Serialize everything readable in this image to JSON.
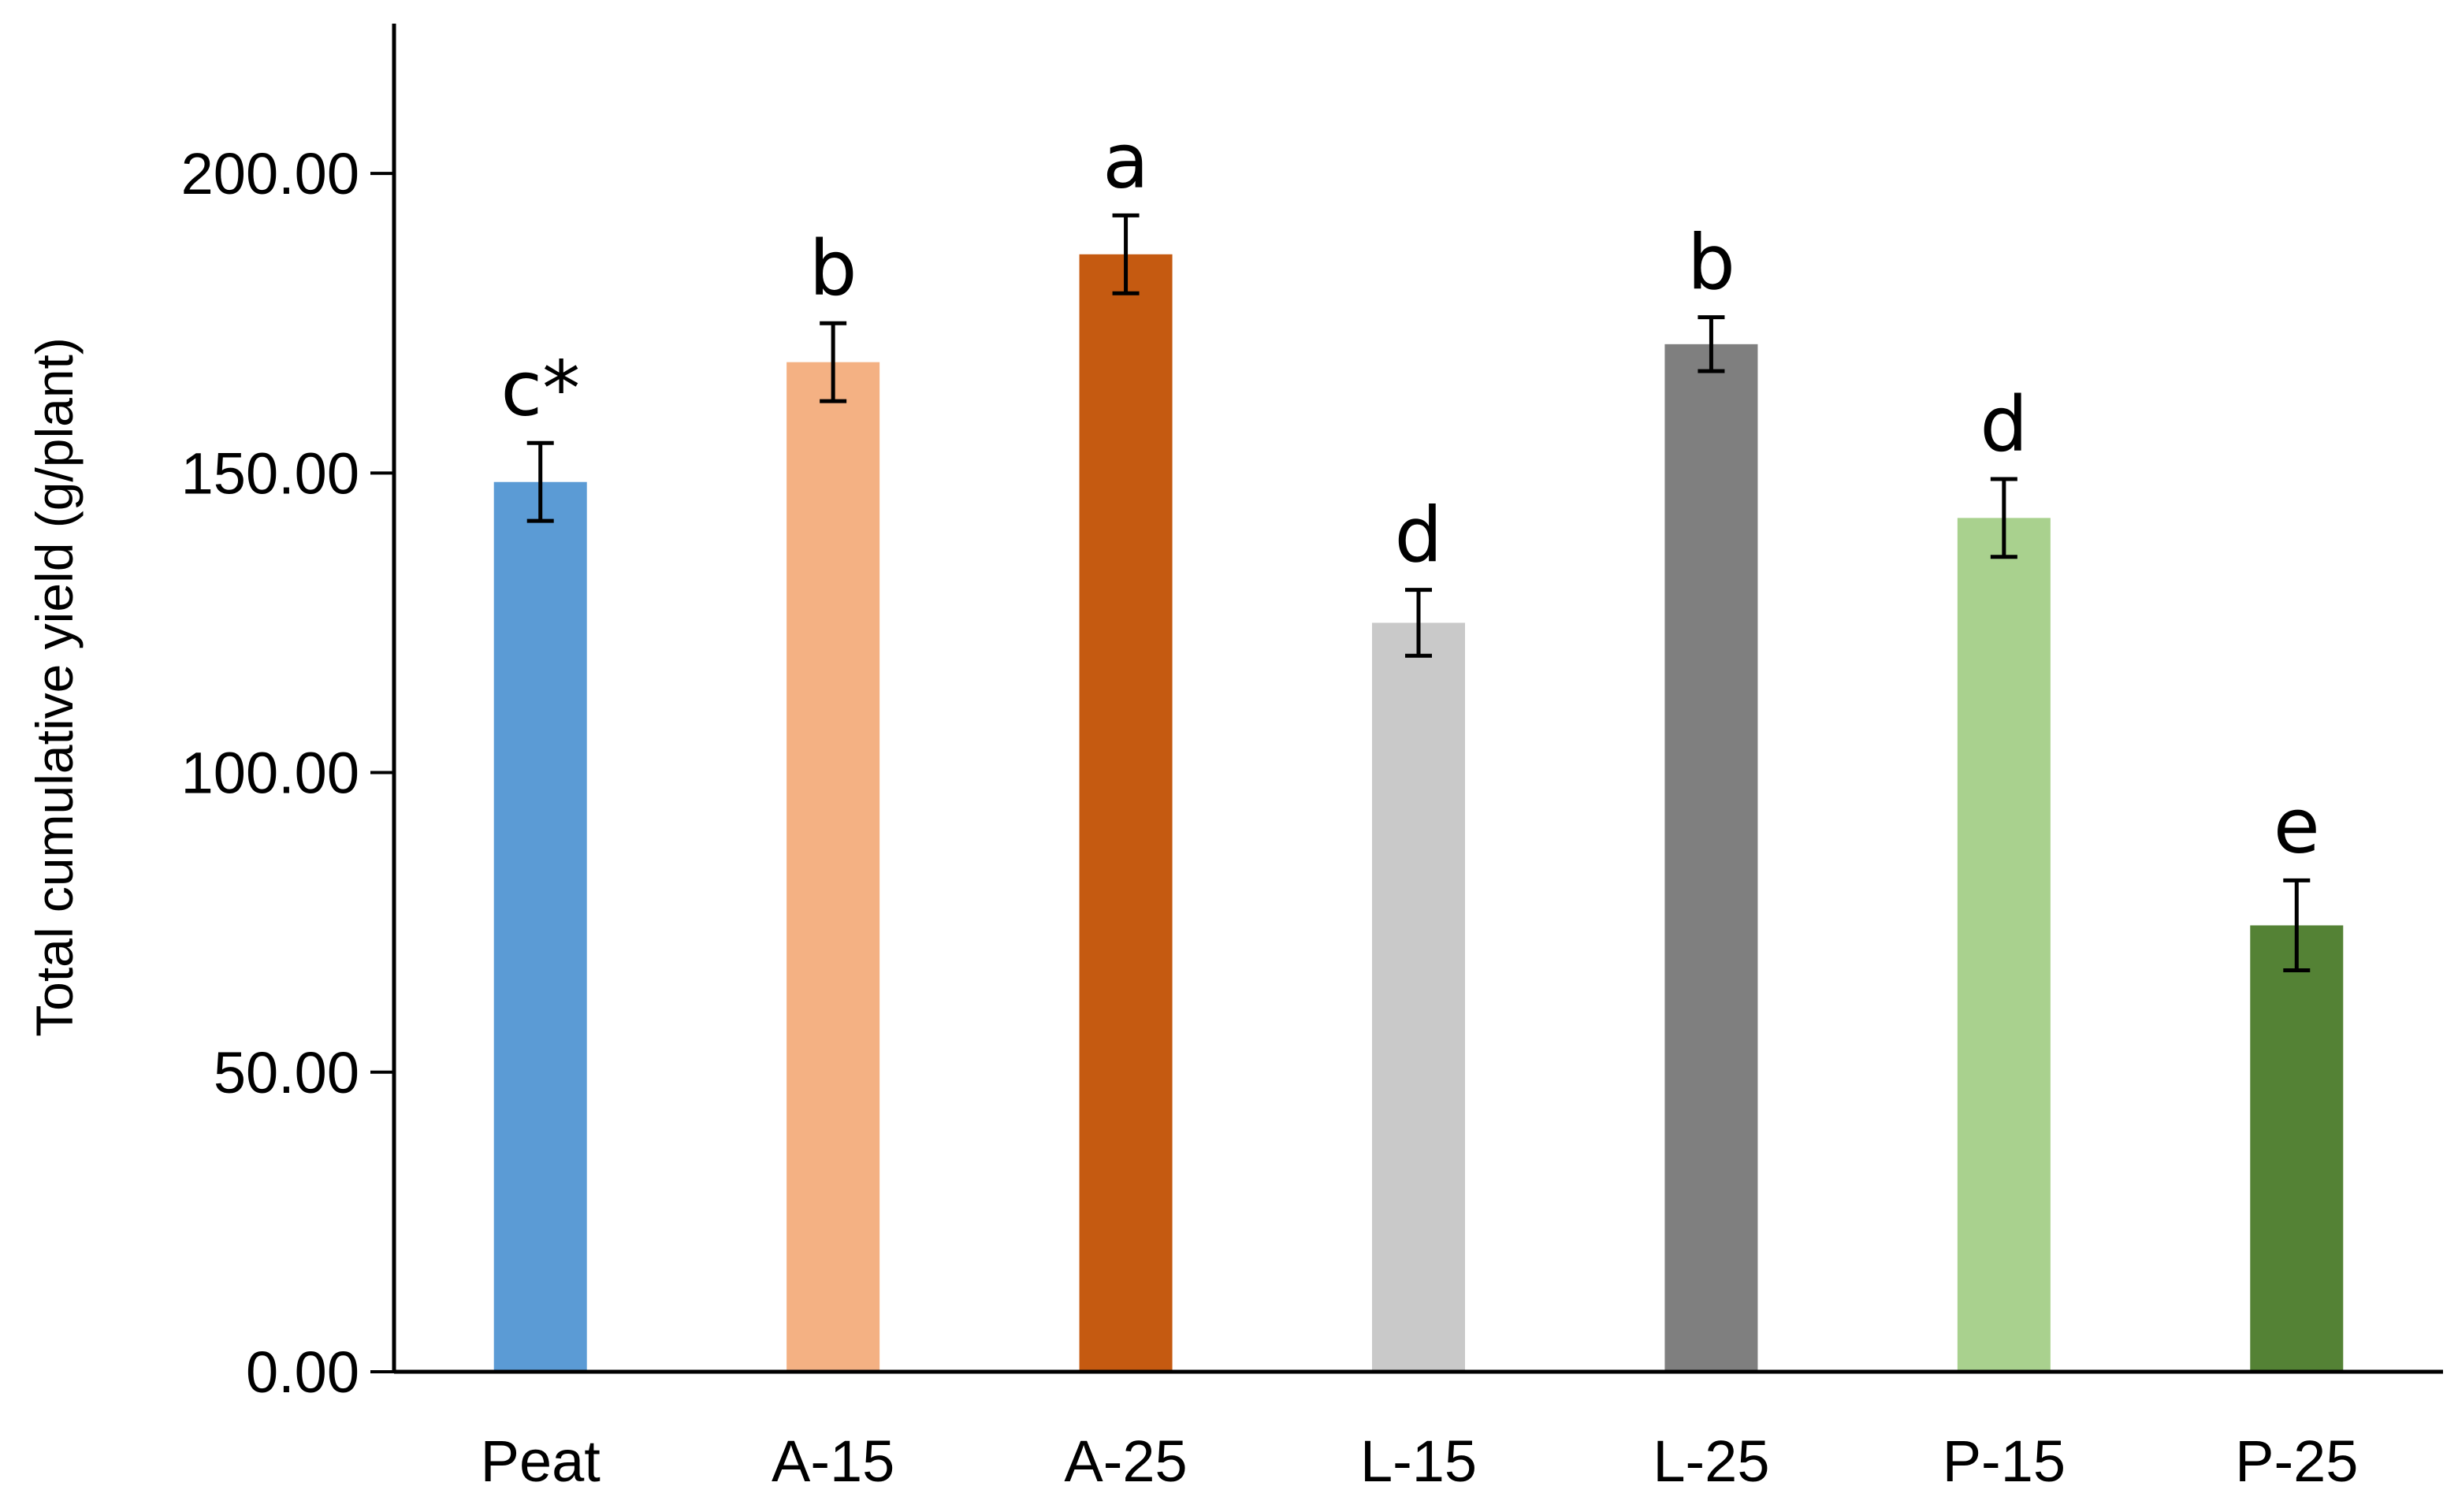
{
  "chart_data": {
    "type": "bar",
    "title": "",
    "xlabel": "",
    "ylabel": "Total cumulative yield (g/plant)",
    "ylim": [
      0,
      225
    ],
    "yticks": [
      0,
      50,
      100,
      150,
      200
    ],
    "ytick_labels": [
      "0.00",
      "50.00",
      "100.00",
      "150.00",
      "200.00"
    ],
    "grid": false,
    "legend": "none",
    "categories": [
      "Peat",
      "A-15",
      "A-25",
      "L-15",
      "L-25",
      "P-15",
      "P-25"
    ],
    "values": [
      148.5,
      168.5,
      186.5,
      125,
      171.5,
      142.5,
      74.5
    ],
    "errors": [
      6.5,
      6.5,
      6.5,
      5.5,
      4.5,
      6.5,
      7.5
    ],
    "significance_labels": [
      "c*",
      "b",
      "a",
      "d",
      "b",
      "d",
      "e"
    ],
    "colors": [
      "#5b9bd5",
      "#f4b183",
      "#c55a11",
      "#c9c9c9",
      "#7f7f7f",
      "#a9d18e",
      "#548235"
    ]
  }
}
